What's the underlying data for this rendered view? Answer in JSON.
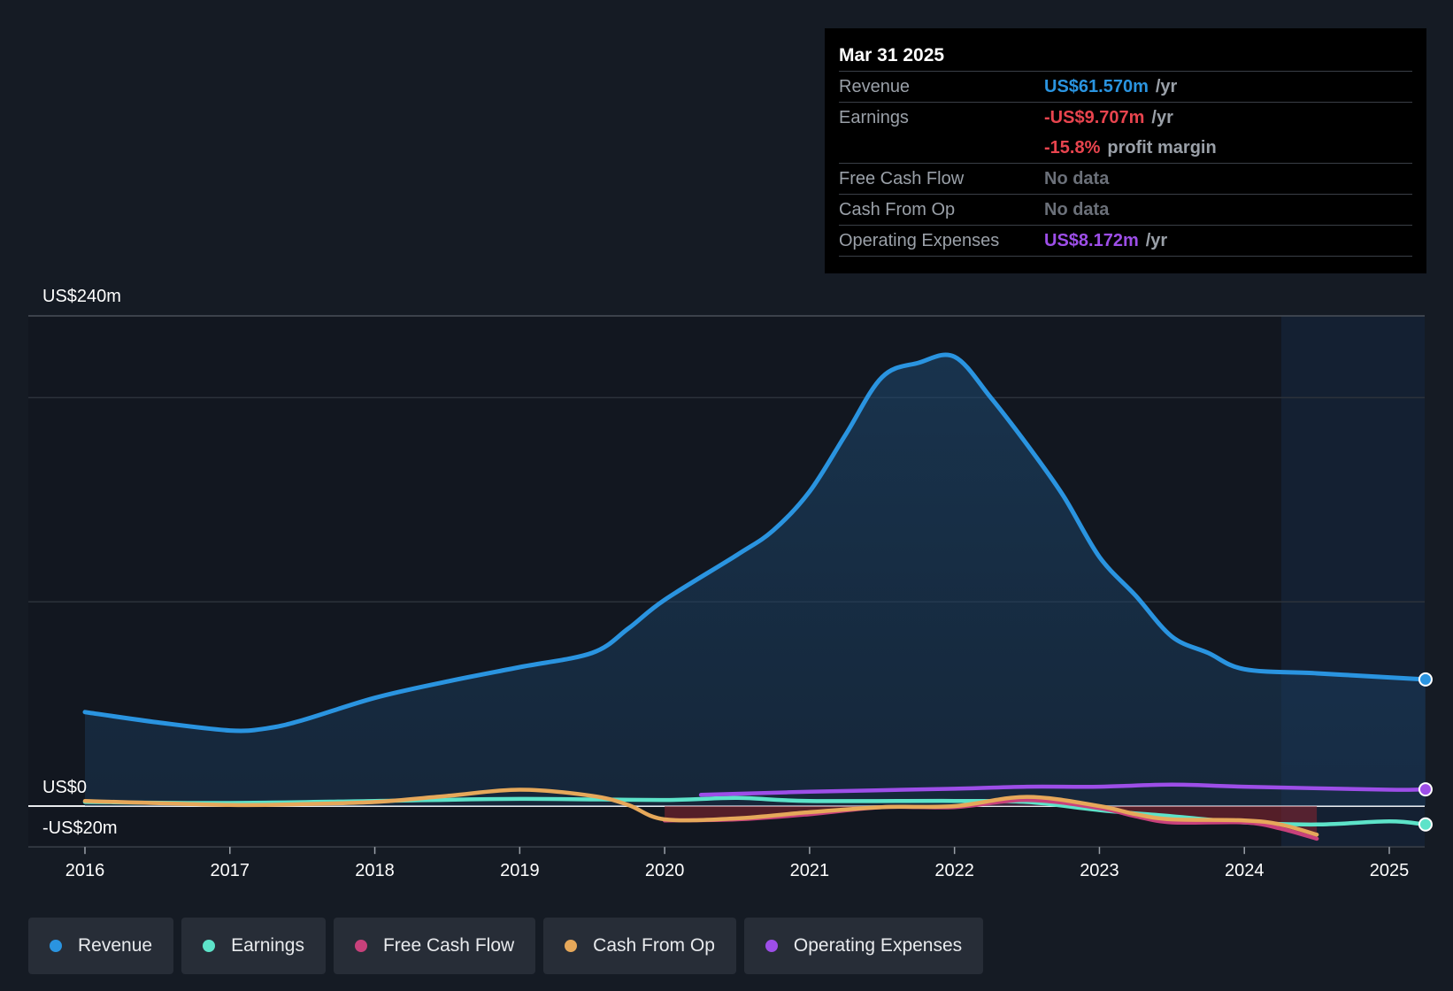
{
  "tooltip": {
    "date": "Mar 31 2025",
    "rows": [
      {
        "label": "Revenue",
        "value": "US$61.570m",
        "unit": "/yr",
        "color": "#2a94e0"
      },
      {
        "label": "Earnings",
        "value": "-US$9.707m",
        "unit": "/yr",
        "color": "#e8444e"
      },
      {
        "label": "",
        "value": "-15.8%",
        "unit": "profit margin",
        "color": "#e8444e"
      },
      {
        "label": "Free Cash Flow",
        "value": "No data",
        "unit": "",
        "color": "#6b7079"
      },
      {
        "label": "Cash From Op",
        "value": "No data",
        "unit": "",
        "color": "#6b7079"
      },
      {
        "label": "Operating Expenses",
        "value": "US$8.172m",
        "unit": "/yr",
        "color": "#9d4ee8"
      }
    ]
  },
  "legend": [
    {
      "label": "Revenue",
      "color": "#2a94e0"
    },
    {
      "label": "Earnings",
      "color": "#5de3c9"
    },
    {
      "label": "Free Cash Flow",
      "color": "#c8417b"
    },
    {
      "label": "Cash From Op",
      "color": "#e6a85a"
    },
    {
      "label": "Operating Expenses",
      "color": "#9d4ee8"
    }
  ],
  "chart_data": {
    "type": "line",
    "y_labels": [
      "US$240m",
      "US$0",
      "-US$20m"
    ],
    "ylim": [
      -20,
      240
    ],
    "xlim": [
      2016,
      2025.25
    ],
    "x_ticks": [
      "2016",
      "2017",
      "2018",
      "2019",
      "2020",
      "2021",
      "2022",
      "2023",
      "2024",
      "2025"
    ],
    "series": [
      {
        "name": "Revenue",
        "color": "#2a94e0",
        "fill": true,
        "points": [
          [
            2016,
            46
          ],
          [
            2016.5,
            41
          ],
          [
            2017,
            37
          ],
          [
            2017.25,
            38
          ],
          [
            2017.5,
            42
          ],
          [
            2018,
            53
          ],
          [
            2018.5,
            61
          ],
          [
            2019,
            68
          ],
          [
            2019.5,
            75
          ],
          [
            2019.75,
            87
          ],
          [
            2020,
            101
          ],
          [
            2020.5,
            123
          ],
          [
            2020.75,
            135
          ],
          [
            2021,
            154
          ],
          [
            2021.25,
            182
          ],
          [
            2021.5,
            210
          ],
          [
            2021.75,
            217
          ],
          [
            2022,
            220
          ],
          [
            2022.25,
            200
          ],
          [
            2022.5,
            177
          ],
          [
            2022.75,
            152
          ],
          [
            2023,
            122
          ],
          [
            2023.25,
            103
          ],
          [
            2023.5,
            83
          ],
          [
            2023.75,
            75
          ],
          [
            2024,
            67
          ],
          [
            2024.5,
            65
          ],
          [
            2025,
            63
          ],
          [
            2025.25,
            62
          ]
        ]
      },
      {
        "name": "Earnings",
        "color": "#5de3c9",
        "fill": false,
        "points": [
          [
            2016,
            2
          ],
          [
            2017,
            1.5
          ],
          [
            2018,
            2.5
          ],
          [
            2019,
            3.5
          ],
          [
            2020,
            3
          ],
          [
            2020.5,
            4
          ],
          [
            2021,
            2.5
          ],
          [
            2022,
            2.5
          ],
          [
            2022.5,
            2
          ],
          [
            2023,
            -2
          ],
          [
            2023.5,
            -5
          ],
          [
            2024,
            -8
          ],
          [
            2024.5,
            -9
          ],
          [
            2025,
            -7.5
          ],
          [
            2025.25,
            -9
          ]
        ]
      },
      {
        "name": "Free Cash Flow",
        "color": "#c8417b",
        "fill": false,
        "points": [
          [
            2020,
            -7
          ],
          [
            2020.5,
            -6.5
          ],
          [
            2021,
            -4
          ],
          [
            2021.5,
            -0.5
          ],
          [
            2022,
            -0.5
          ],
          [
            2022.5,
            3
          ],
          [
            2023,
            -1
          ],
          [
            2023.25,
            -5
          ],
          [
            2023.5,
            -8
          ],
          [
            2024,
            -8
          ],
          [
            2024.25,
            -11
          ],
          [
            2024.5,
            -16
          ]
        ]
      },
      {
        "name": "Cash From Op",
        "color": "#e6a85a",
        "fill": false,
        "points": [
          [
            2016,
            2.5
          ],
          [
            2017,
            0.5
          ],
          [
            2017.5,
            1
          ],
          [
            2018,
            2
          ],
          [
            2018.5,
            5
          ],
          [
            2019,
            8
          ],
          [
            2019.5,
            5
          ],
          [
            2019.75,
            0.5
          ],
          [
            2020,
            -6.5
          ],
          [
            2020.5,
            -6
          ],
          [
            2021,
            -3
          ],
          [
            2021.5,
            -0.5
          ],
          [
            2022,
            0
          ],
          [
            2022.5,
            4.5
          ],
          [
            2023,
            0
          ],
          [
            2023.25,
            -4
          ],
          [
            2023.5,
            -6.5
          ],
          [
            2024,
            -7
          ],
          [
            2024.25,
            -9
          ],
          [
            2024.5,
            -14
          ]
        ]
      },
      {
        "name": "Operating Expenses",
        "color": "#9d4ee8",
        "fill": false,
        "points": [
          [
            2020.25,
            5.5
          ],
          [
            2021,
            7
          ],
          [
            2022,
            8.5
          ],
          [
            2022.5,
            9.5
          ],
          [
            2023,
            9.5
          ],
          [
            2023.5,
            10.5
          ],
          [
            2024,
            9.5
          ],
          [
            2025,
            8
          ],
          [
            2025.25,
            8.2
          ]
        ]
      }
    ]
  }
}
